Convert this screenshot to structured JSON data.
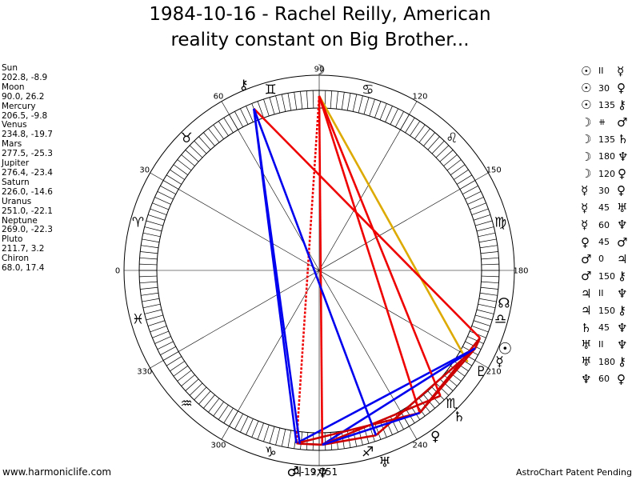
{
  "title": "1984-10-16 - Rachel Reilly, American\nreality constant on Big Brother...",
  "planets": [
    {
      "name": "Sun",
      "pos": "202.8, -8.9",
      "glyph": "☉",
      "lon": 202.8
    },
    {
      "name": "Moon",
      "pos": "90.0, 26.2",
      "glyph": "☽",
      "lon": 90.0
    },
    {
      "name": "Mercury",
      "pos": "206.5, -9.8",
      "glyph": "☿",
      "lon": 206.5
    },
    {
      "name": "Venus",
      "pos": "234.8, -19.7",
      "glyph": "♀",
      "lon": 234.8
    },
    {
      "name": "Mars",
      "pos": "277.5, -25.3",
      "glyph": "♂",
      "lon": 277.5
    },
    {
      "name": "Jupiter",
      "pos": "276.4, -23.4",
      "glyph": "♃",
      "lon": 276.4
    },
    {
      "name": "Saturn",
      "pos": "226.0, -14.6",
      "glyph": "♄",
      "lon": 226.0
    },
    {
      "name": "Uranus",
      "pos": "251.0, -22.1",
      "glyph": "♅",
      "lon": 251.0
    },
    {
      "name": "Neptune",
      "pos": "269.0, -22.3",
      "glyph": "♆",
      "lon": 269.0
    },
    {
      "name": "Pluto",
      "pos": "211.7, 3.2",
      "glyph": "♇",
      "lon": 211.7
    },
    {
      "name": "Chiron",
      "pos": "68.0, 17.4",
      "glyph": "⚷",
      "lon": 68.0
    }
  ],
  "aspects": [
    {
      "p1": "☉",
      "angle": "II",
      "p2": "☿",
      "from": "Sun",
      "to": "Mercury",
      "color": "#cc0000"
    },
    {
      "p1": "☉",
      "angle": "30",
      "p2": "♀",
      "from": "Sun",
      "to": "Venus",
      "color": "#cc0000"
    },
    {
      "p1": "☉",
      "angle": "135",
      "p2": "⚷",
      "from": "Sun",
      "to": "Chiron",
      "color": "#ee0000"
    },
    {
      "p1": "☽",
      "angle": "⧺",
      "p2": "♂",
      "from": "Moon",
      "to": "Mars",
      "color": "#ee0000",
      "dotted": true
    },
    {
      "p1": "☽",
      "angle": "135",
      "p2": "♄",
      "from": "Moon",
      "to": "Saturn",
      "color": "#ee0000"
    },
    {
      "p1": "☽",
      "angle": "180",
      "p2": "♆",
      "from": "Moon",
      "to": "Neptune",
      "color": "#ee0000"
    },
    {
      "p1": "☽",
      "angle": "120",
      "p2": "♀",
      "from": "Moon",
      "to": "Venus",
      "color": "#ee0000"
    },
    {
      "p1": "☿",
      "angle": "30",
      "p2": "♀",
      "from": "Mercury",
      "to": "Venus",
      "color": "#cc0000"
    },
    {
      "p1": "☿",
      "angle": "45",
      "p2": "♅",
      "from": "Mercury",
      "to": "Uranus",
      "color": "#cc0000"
    },
    {
      "p1": "☿",
      "angle": "60",
      "p2": "♆",
      "from": "Mercury",
      "to": "Neptune",
      "color": "#0000ee"
    },
    {
      "p1": "♀",
      "angle": "45",
      "p2": "♂",
      "from": "Venus",
      "to": "Mars",
      "color": "#cc0000"
    },
    {
      "p1": "♂",
      "angle": "0",
      "p2": "♃",
      "from": "Mars",
      "to": "Jupiter",
      "color": "#cc0000"
    },
    {
      "p1": "♂",
      "angle": "150",
      "p2": "⚷",
      "from": "Mars",
      "to": "Chiron",
      "color": "#0000ee"
    },
    {
      "p1": "♃",
      "angle": "II",
      "p2": "♆",
      "from": "Jupiter",
      "to": "Neptune",
      "color": "#cc0000"
    },
    {
      "p1": "♃",
      "angle": "150",
      "p2": "⚷",
      "from": "Jupiter",
      "to": "Chiron",
      "color": "#0000ee"
    },
    {
      "p1": "♄",
      "angle": "45",
      "p2": "♆",
      "from": "Saturn",
      "to": "Neptune",
      "color": "#cc0000"
    },
    {
      "p1": "♅",
      "angle": "II",
      "p2": "♆",
      "from": "Uranus",
      "to": "Neptune",
      "color": "#cc0000"
    },
    {
      "p1": "♅",
      "angle": "180",
      "p2": "⚷",
      "from": "Uranus",
      "to": "Chiron",
      "color": "#0000ee"
    },
    {
      "p1": "♆",
      "angle": "60",
      "p2": "♀",
      "from": "Neptune",
      "to": "Venus",
      "color": "#0000ee"
    }
  ],
  "extra_lines": [
    {
      "from": "Moon",
      "to": "Pluto",
      "color": "#ddaa00"
    },
    {
      "from": "Mercury",
      "to": "Mars",
      "color": "#0000ee"
    }
  ],
  "zodiac": [
    {
      "name": "aries",
      "glyph": "♈",
      "lon": 15
    },
    {
      "name": "taurus",
      "glyph": "♉",
      "lon": 45
    },
    {
      "name": "gemini",
      "glyph": "♊",
      "lon": 75
    },
    {
      "name": "cancer",
      "glyph": "♋",
      "lon": 105
    },
    {
      "name": "leo",
      "glyph": "♌",
      "lon": 135
    },
    {
      "name": "virgo",
      "glyph": "♍",
      "lon": 165
    },
    {
      "name": "libra",
      "glyph": "♎",
      "lon": 195
    },
    {
      "name": "scorpio",
      "glyph": "♏",
      "lon": 225
    },
    {
      "name": "sagittarius",
      "glyph": "♐",
      "lon": 255
    },
    {
      "name": "capricorn",
      "glyph": "♑",
      "lon": 285
    },
    {
      "name": "aquarius",
      "glyph": "♒",
      "lon": 315
    },
    {
      "name": "pisces",
      "glyph": "♓",
      "lon": 345
    }
  ],
  "degree_labels": [
    "0",
    "30",
    "60",
    "90",
    "120",
    "150",
    "180",
    "210",
    "240",
    "270",
    "300",
    "330"
  ],
  "north_node": {
    "glyph": "☊",
    "lon": 190
  },
  "extra_value": "-19,751",
  "colors": {
    "red": "#ee0000",
    "blue": "#0000ee",
    "gold": "#ddaa00"
  },
  "footer_left": "www.harmoniclife.com",
  "footer_right": "AstroChart Patent Pending"
}
